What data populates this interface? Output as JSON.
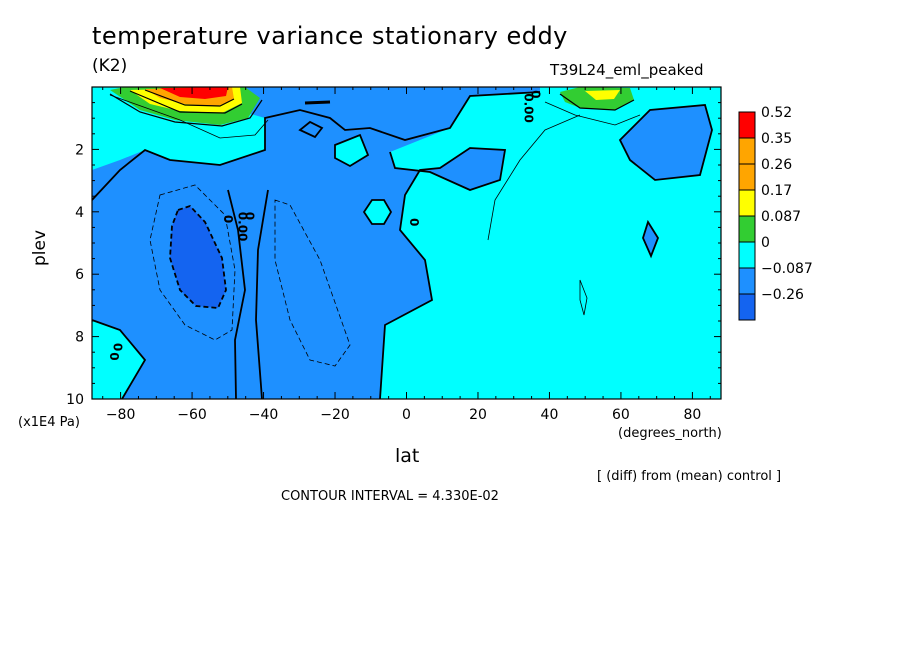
{
  "header": {
    "title": "temperature variance stationary eddy",
    "units": "(K2)",
    "run": "T39L24_eml_peaked"
  },
  "footer": {
    "diff_note": "[ (diff) from (mean) control ]",
    "contour_interval": "CONTOUR INTERVAL = 4.330E-02"
  },
  "colors": {
    "fill_0_to_0087": "#00ffff",
    "fill_neg_0087_to_0": "#1e90ff",
    "fill_neg_026_to_neg_0087": "#1464f0",
    "fill_0087_to_017": "#32cd32",
    "fill_017_to_026": "#ffff00",
    "fill_026_to_035": "#ffa500",
    "fill_035_to_052": "#ffa500",
    "fill_above_052": "#ff0000"
  },
  "chart_data": {
    "type": "heatmap",
    "subtype": "filled contour",
    "title": "temperature variance stationary eddy",
    "xlabel": "lat",
    "xunit": "(degrees_north)",
    "ylabel": "plev",
    "yunit": "(x1E4 Pa)",
    "xlim": [
      -88,
      88
    ],
    "ylim": [
      10,
      0
    ],
    "y_inverted": true,
    "xticks": [
      -80,
      -60,
      -40,
      -20,
      0,
      20,
      40,
      60,
      80
    ],
    "xtick_labels": [
      "−80",
      "−60",
      "−40",
      "−20",
      "0",
      "20",
      "40",
      "60",
      "80"
    ],
    "yticks": [
      2,
      4,
      6,
      8,
      10
    ],
    "ytick_labels": [
      "2",
      "4",
      "6",
      "8",
      "10"
    ],
    "colorbar": {
      "levels": [
        "0.52",
        "0.35",
        "0.26",
        "0.17",
        "0.087",
        "0",
        "−0.087",
        "−0.26"
      ],
      "colors": [
        "#ff0000",
        "#ffa500",
        "#ffa500",
        "#ffff00",
        "#32cd32",
        "#00ffff",
        "#1e90ff",
        "#1464f0"
      ]
    },
    "contour_labels": [
      "0",
      "0",
      "0",
      "0",
      "0.00",
      "0",
      "0.00",
      "0"
    ],
    "contour_interval": 0.0433,
    "features": [
      {
        "name": "positive maximum near surface",
        "lat": -62,
        "plev": 0.3,
        "value_range": "> 0.52"
      },
      {
        "name": "positive maximum near surface",
        "lat": 53,
        "plev": 0.4,
        "value_range": "0.17 to 0.26"
      },
      {
        "name": "negative minimum",
        "lat": -60,
        "plev": 5.5,
        "value_range": "-0.26 to -0.087"
      }
    ]
  }
}
